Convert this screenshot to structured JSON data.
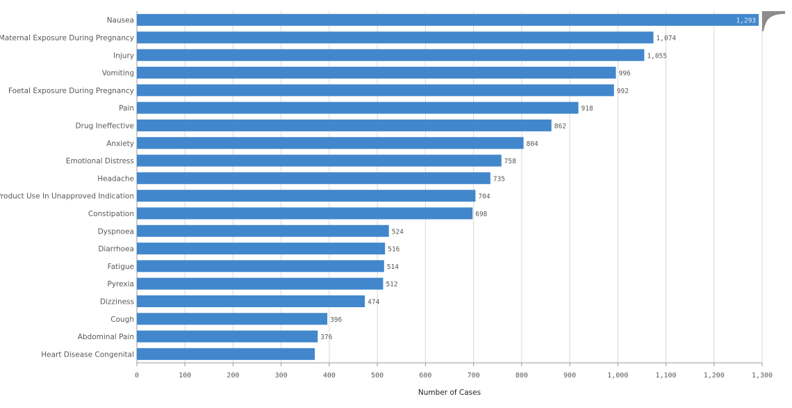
{
  "chart_data": {
    "type": "bar",
    "orientation": "horizontal",
    "xlabel": "Number of Cases",
    "xlim": [
      0,
      1300
    ],
    "xticks": [
      0,
      100,
      200,
      300,
      400,
      500,
      600,
      700,
      800,
      900,
      1000,
      1100,
      1200,
      1300
    ],
    "xtick_labels": [
      "0",
      "100",
      "200",
      "300",
      "400",
      "500",
      "600",
      "700",
      "800",
      "900",
      "1,000",
      "1,100",
      "1,200",
      "1,300"
    ],
    "grid": true,
    "bar_color": "#4287cc",
    "categories": [
      "Nausea",
      "Maternal Exposure During Pregnancy",
      "Injury",
      "Vomiting",
      "Foetal Exposure During Pregnancy",
      "Pain",
      "Drug Ineffective",
      "Anxiety",
      "Emotional Distress",
      "Headache",
      "Product Use In Unapproved Indication",
      "Constipation",
      "Dyspnoea",
      "Diarrhoea",
      "Fatigue",
      "Pyrexia",
      "Dizziness",
      "Cough",
      "Abdominal Pain",
      "Heart Disease Congenital"
    ],
    "values": [
      1293,
      1074,
      1055,
      996,
      992,
      918,
      862,
      804,
      758,
      735,
      704,
      698,
      524,
      516,
      514,
      512,
      474,
      396,
      376,
      370
    ],
    "value_labels": [
      "1,293",
      "1,074",
      "1,055",
      "996",
      "992",
      "918",
      "862",
      "804",
      "758",
      "735",
      "704",
      "698",
      "524",
      "516",
      "514",
      "512",
      "474",
      "396",
      "376",
      ""
    ]
  }
}
